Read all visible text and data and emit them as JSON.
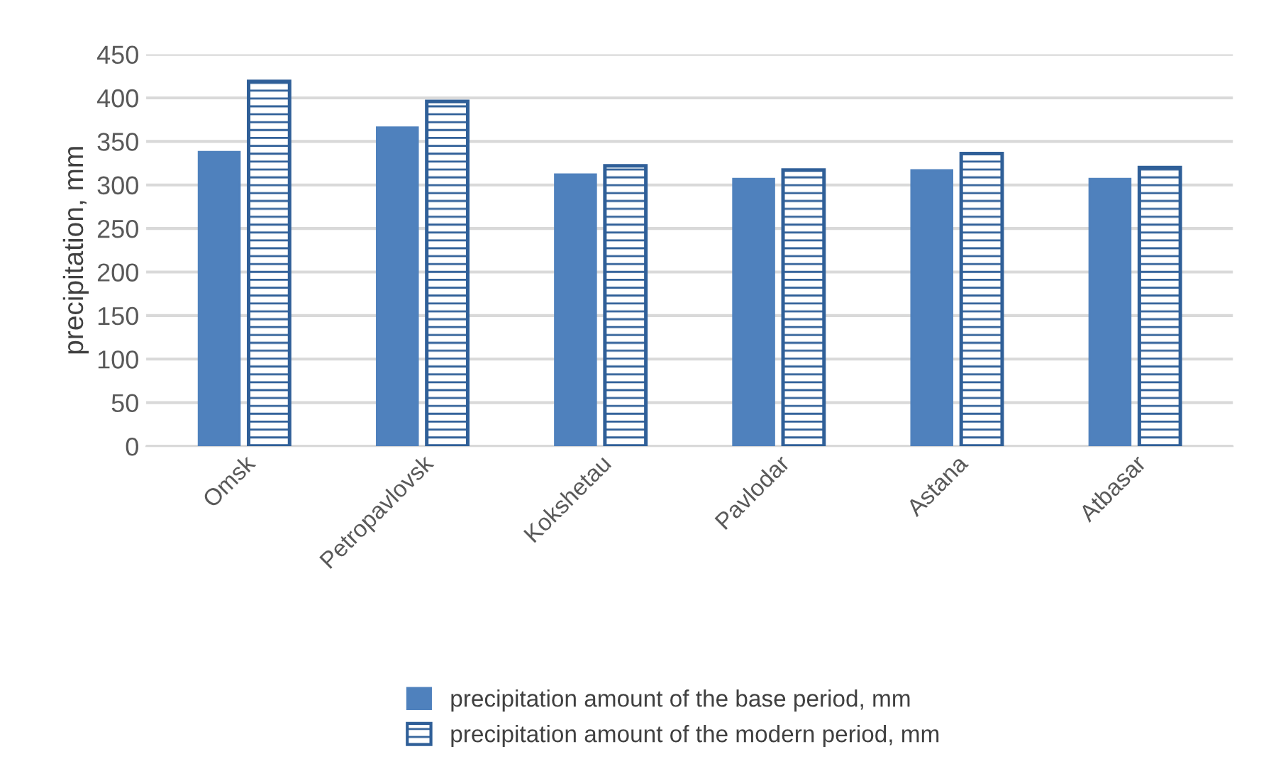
{
  "chart_data": {
    "type": "bar",
    "ylabel": "precipitation, mm",
    "categories": [
      "Omsk",
      "Petropavlovsk",
      "Kokshetau",
      "Pavlodar",
      "Astana",
      "Atbasar"
    ],
    "series": [
      {
        "name": "precipitation amount of the base period, mm",
        "color": "#4f81bd",
        "values": [
          338,
          366,
          312,
          307,
          317,
          307
        ]
      },
      {
        "name": "precipitation amount of the modern period, mm",
        "color": "#2f5f98",
        "values": [
          419,
          396,
          322,
          317,
          336,
          320
        ]
      }
    ],
    "ylim": [
      0,
      450
    ],
    "yticks": [
      0,
      50,
      100,
      150,
      200,
      250,
      300,
      350,
      400,
      450
    ],
    "grid": "y",
    "legend": "bottom"
  }
}
